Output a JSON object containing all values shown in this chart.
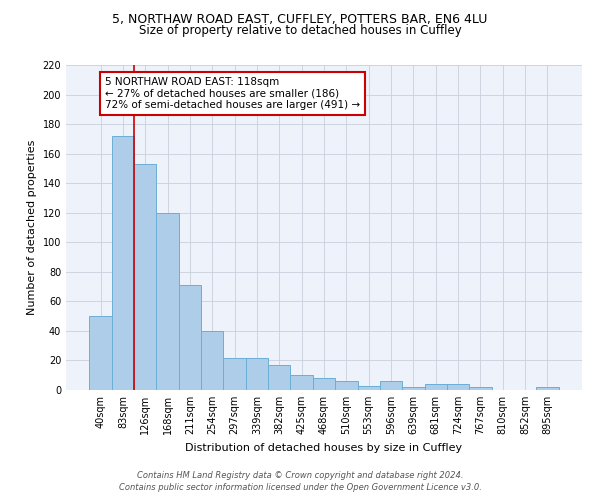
{
  "title1": "5, NORTHAW ROAD EAST, CUFFLEY, POTTERS BAR, EN6 4LU",
  "title2": "Size of property relative to detached houses in Cuffley",
  "xlabel": "Distribution of detached houses by size in Cuffley",
  "ylabel": "Number of detached properties",
  "bar_color": "#aecde8",
  "bar_edge_color": "#6aaed6",
  "bg_color": "#eef3fb",
  "grid_color": "#c8d0dc",
  "categories": [
    "40sqm",
    "83sqm",
    "126sqm",
    "168sqm",
    "211sqm",
    "254sqm",
    "297sqm",
    "339sqm",
    "382sqm",
    "425sqm",
    "468sqm",
    "510sqm",
    "553sqm",
    "596sqm",
    "639sqm",
    "681sqm",
    "724sqm",
    "767sqm",
    "810sqm",
    "852sqm",
    "895sqm"
  ],
  "values": [
    50,
    172,
    153,
    120,
    71,
    40,
    22,
    22,
    17,
    10,
    8,
    6,
    3,
    6,
    2,
    4,
    4,
    2,
    0,
    0,
    2
  ],
  "red_line_x": 1.5,
  "annotation_text": "5 NORTHAW ROAD EAST: 118sqm\n← 27% of detached houses are smaller (186)\n72% of semi-detached houses are larger (491) →",
  "ylim": [
    0,
    220
  ],
  "yticks": [
    0,
    20,
    40,
    60,
    80,
    100,
    120,
    140,
    160,
    180,
    200,
    220
  ],
  "footer": "Contains HM Land Registry data © Crown copyright and database right 2024.\nContains public sector information licensed under the Open Government Licence v3.0.",
  "title_fontsize": 9,
  "subtitle_fontsize": 8.5,
  "axis_label_fontsize": 8,
  "tick_fontsize": 7,
  "annotation_fontsize": 7.5
}
